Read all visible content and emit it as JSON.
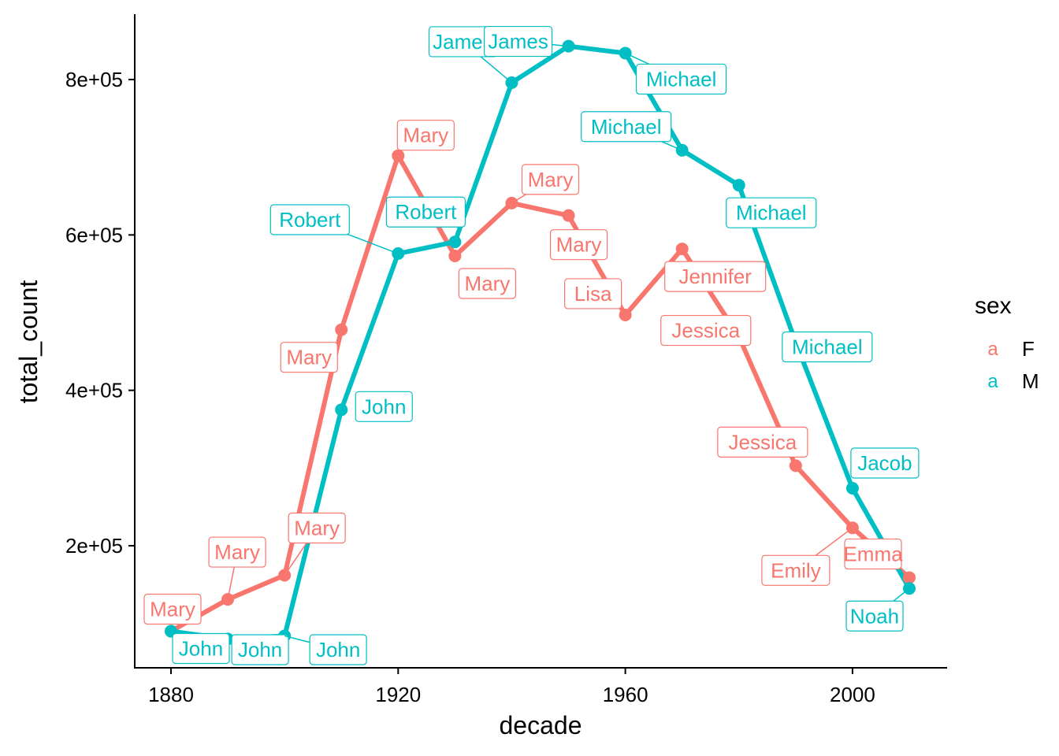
{
  "chart_data": {
    "type": "line",
    "xlabel": "decade",
    "ylabel": "total_count",
    "xlim": [
      1872,
      2015
    ],
    "ylim": [
      35000,
      885000
    ],
    "x_ticks": [
      {
        "value": 1880,
        "label": "1880"
      },
      {
        "value": 1920,
        "label": "1920"
      },
      {
        "value": 1960,
        "label": "1960"
      },
      {
        "value": 2000,
        "label": "2000"
      }
    ],
    "y_ticks": [
      {
        "value": 200000,
        "label": "2e+05"
      },
      {
        "value": 400000,
        "label": "4e+05"
      },
      {
        "value": 600000,
        "label": "6e+05"
      },
      {
        "value": 800000,
        "label": "8e+05"
      }
    ],
    "grid": false,
    "legend": {
      "title": "sex",
      "position": "right",
      "key_glyph": "a",
      "entries": [
        {
          "name": "F",
          "color": "#F8766D"
        },
        {
          "name": "M",
          "color": "#00BFC4"
        }
      ]
    },
    "series": [
      {
        "name": "F",
        "color": "#F8766D",
        "points": [
          {
            "x": 1880,
            "y": 90000,
            "name": "Mary"
          },
          {
            "x": 1890,
            "y": 131000,
            "name": "Mary"
          },
          {
            "x": 1900,
            "y": 162000,
            "name": "Mary"
          },
          {
            "x": 1910,
            "y": 478000,
            "name": "Mary"
          },
          {
            "x": 1920,
            "y": 702000,
            "name": "Mary"
          },
          {
            "x": 1930,
            "y": 573000,
            "name": "Mary"
          },
          {
            "x": 1940,
            "y": 641000,
            "name": "Mary"
          },
          {
            "x": 1950,
            "y": 625000,
            "name": "Mary"
          },
          {
            "x": 1960,
            "y": 497000,
            "name": "Lisa"
          },
          {
            "x": 1970,
            "y": 582000,
            "name": "Jennifer"
          },
          {
            "x": 1980,
            "y": 469000,
            "name": "Jessica"
          },
          {
            "x": 1990,
            "y": 303000,
            "name": "Jessica"
          },
          {
            "x": 2000,
            "y": 223000,
            "name": "Emily"
          },
          {
            "x": 2010,
            "y": 159000,
            "name": "Emma"
          }
        ]
      },
      {
        "name": "M",
        "color": "#00BFC4",
        "points": [
          {
            "x": 1880,
            "y": 90000,
            "name": "John"
          },
          {
            "x": 1890,
            "y": 80000,
            "name": "John"
          },
          {
            "x": 1900,
            "y": 84000,
            "name": "John"
          },
          {
            "x": 1910,
            "y": 375000,
            "name": "John"
          },
          {
            "x": 1920,
            "y": 576000,
            "name": "Robert"
          },
          {
            "x": 1930,
            "y": 591000,
            "name": "Robert"
          },
          {
            "x": 1940,
            "y": 796000,
            "name": "James"
          },
          {
            "x": 1950,
            "y": 843000,
            "name": "James"
          },
          {
            "x": 1960,
            "y": 834000,
            "name": "Michael"
          },
          {
            "x": 1970,
            "y": 709000,
            "name": "Michael"
          },
          {
            "x": 1980,
            "y": 664000,
            "name": "Michael"
          },
          {
            "x": 1990,
            "y": 462000,
            "name": "Michael"
          },
          {
            "x": 2000,
            "y": 274000,
            "name": "Jacob"
          },
          {
            "x": 2010,
            "y": 145000,
            "name": "Noah"
          }
        ]
      }
    ]
  }
}
